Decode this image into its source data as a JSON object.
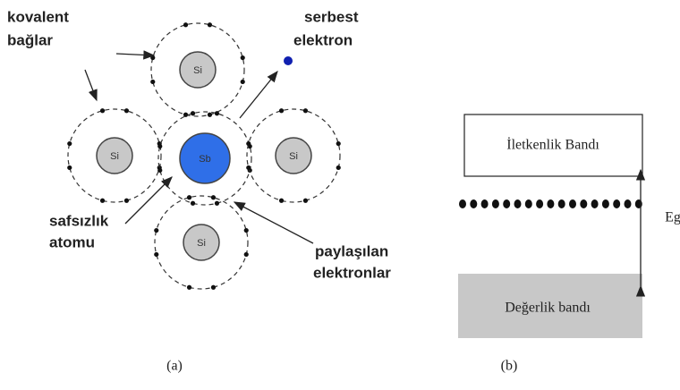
{
  "labels": {
    "covalent_bonds": [
      "kovalent",
      "bağlar"
    ],
    "free_electron": [
      "serbest",
      "elektron"
    ],
    "impurity_atom": [
      "safsızlık",
      "atomu"
    ],
    "shared_electrons": [
      "paylaşılan",
      "elektronlar"
    ]
  },
  "atoms": [
    {
      "label": "Si"
    },
    {
      "label": "Si"
    },
    {
      "label": "Sb"
    },
    {
      "label": "Si"
    },
    {
      "label": "Si"
    }
  ],
  "bands": {
    "conduction": "İletkenlik Bandı",
    "valence": "Değerlik bandı",
    "gap": "Eg"
  },
  "captions": [
    "(a)",
    "(b)"
  ]
}
